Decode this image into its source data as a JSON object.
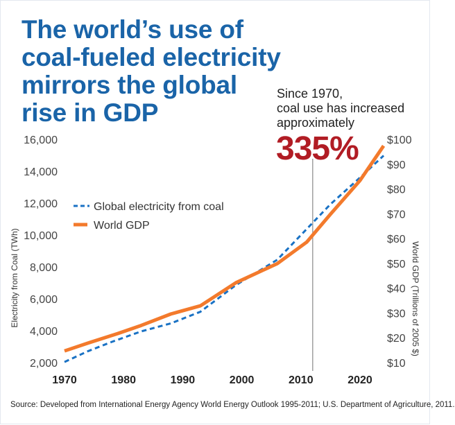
{
  "title_lines": [
    "The world’s use of",
    "coal-fueled electricity",
    "mirrors the global",
    "rise in GDP"
  ],
  "annotation": {
    "lines": [
      "Since 1970,",
      "coal use has increased",
      "approximately"
    ],
    "value": "335%"
  },
  "source": "Source: Developed from International Energy Agency World Energy Outlook 1995-2011; U.S. Department of Agriculture, 2011.",
  "colors": {
    "title": "#1a64a8",
    "coal": "#1a72c4",
    "gdp": "#f37a2c",
    "highlight": "#b11c24",
    "reference_line": "#888888"
  },
  "chart_data": {
    "type": "line",
    "xlabel": "",
    "ylabel": "Electricity from Coal (TWh)",
    "y2label": "World GDP (Trillions of 2005 $)",
    "xticks": [
      "1970",
      "1980",
      "1990",
      "2000",
      "2010",
      "2020"
    ],
    "yticks": [
      "2,000",
      "4,000",
      "6,000",
      "8,000",
      "10,000",
      "12,000",
      "14,000",
      "16,000"
    ],
    "y2ticks": [
      "$10",
      "$20",
      "$30",
      "$40",
      "$50",
      "$60",
      "$70",
      "$80",
      "$90",
      "$100"
    ],
    "xlim": [
      1970,
      2024
    ],
    "ylim": [
      2000,
      16000
    ],
    "y2lim": [
      10,
      100
    ],
    "grid": false,
    "legend_position": "upper-left",
    "reference_line_x": 2012,
    "series": [
      {
        "name": "Global electricity from coal",
        "axis": "left",
        "style": "dashed",
        "x": [
          1970,
          1974,
          1978,
          1983,
          1988,
          1993,
          1999,
          2006,
          2012,
          2015,
          2020,
          2024
        ],
        "values": [
          2040,
          2720,
          3300,
          3960,
          4460,
          5190,
          6860,
          8450,
          10770,
          11930,
          13600,
          14980
        ]
      },
      {
        "name": "World GDP",
        "axis": "right",
        "style": "solid",
        "x": [
          1970,
          1974,
          1979,
          1983,
          1988,
          1993,
          1999,
          2006,
          2011,
          2015,
          2020,
          2024
        ],
        "values": [
          14.7,
          17.9,
          21.7,
          25,
          29.6,
          32.9,
          42.2,
          49.9,
          58.6,
          69.8,
          83.4,
          97.4
        ]
      }
    ]
  }
}
